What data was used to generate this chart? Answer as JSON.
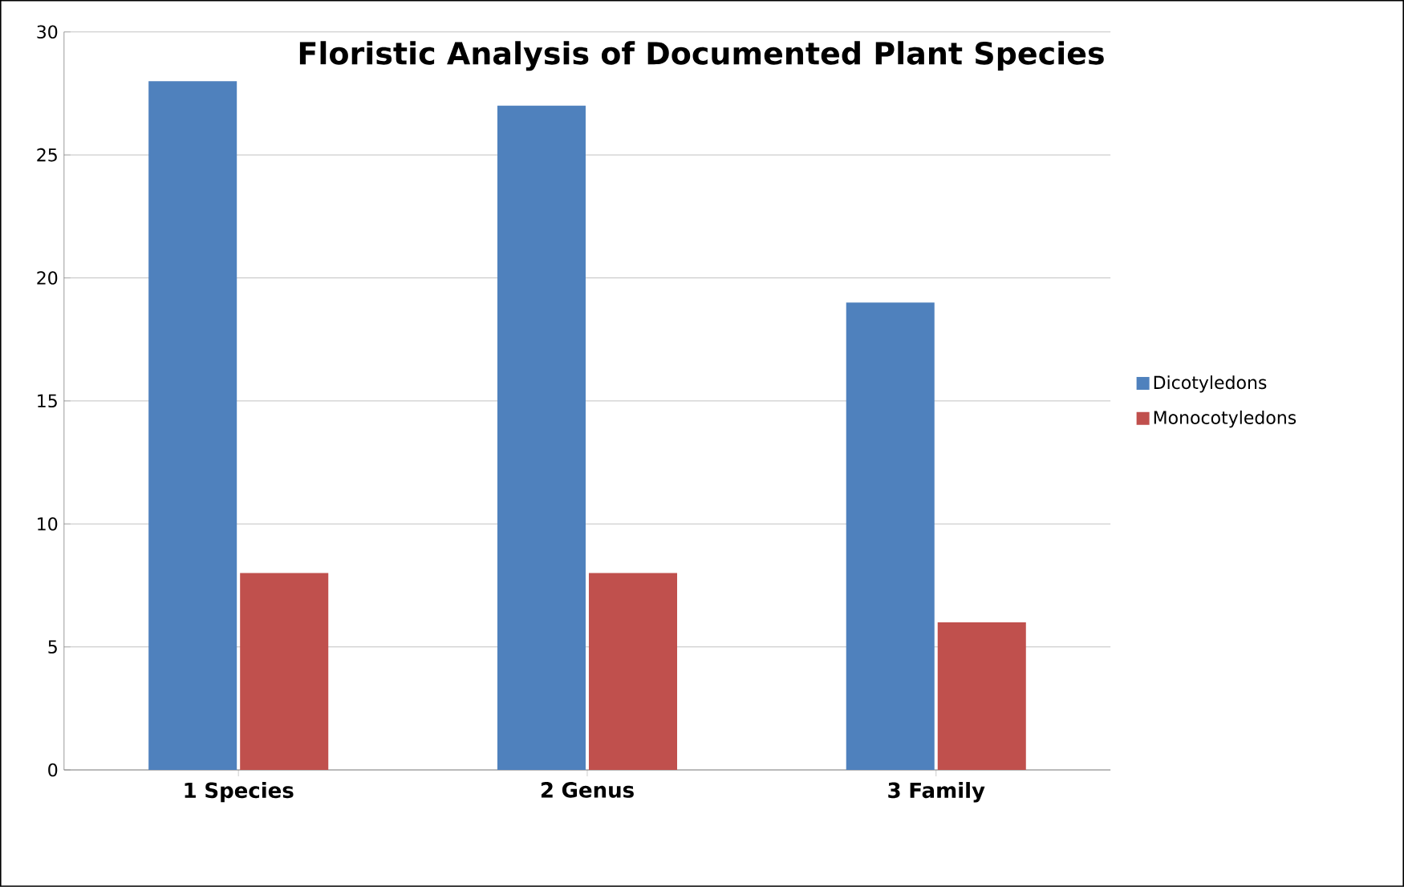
{
  "chart_data": {
    "type": "bar",
    "title": "Floristic Analysis of Documented Plant Species",
    "categories": [
      "1 Species",
      "2 Genus",
      "3 Family"
    ],
    "series": [
      {
        "name": "Dicotyledons",
        "color": "#4f81bd",
        "values": [
          28,
          27,
          19
        ]
      },
      {
        "name": "Monocotyledons",
        "color": "#c0504d",
        "values": [
          8,
          8,
          6
        ]
      }
    ],
    "ylim": [
      0,
      30
    ],
    "yticks": [
      0,
      5,
      10,
      15,
      20,
      25,
      30
    ],
    "grid": "y",
    "legend": "right"
  }
}
